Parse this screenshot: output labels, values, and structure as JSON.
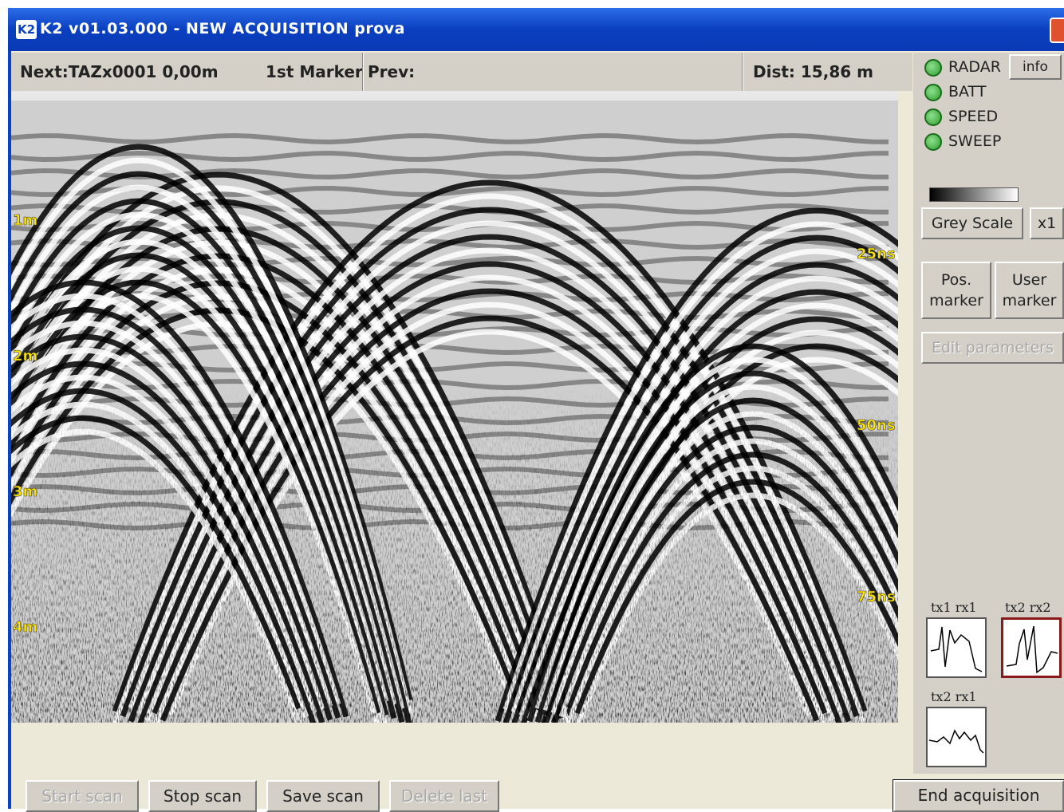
{
  "window": {
    "icon": "K2",
    "title": "K2 v01.03.000 - NEW ACQUISITION  prova"
  },
  "status": {
    "next": "Next:TAZx0001  0,00m",
    "marker": "1st Marker",
    "prev": "Prev:",
    "dist": "Dist:  15,86 m"
  },
  "radargram": {
    "depth_labels": [
      "1m",
      "2m",
      "3m",
      "4m"
    ],
    "time_labels": [
      "25ns",
      "50ns",
      "75ns"
    ]
  },
  "panel": {
    "indicators": [
      "RADAR",
      "BATT",
      "SPEED",
      "SWEEP"
    ],
    "info": "info",
    "color_scale": "Grey Scale",
    "zoom": "x1",
    "pos_marker": "Pos. marker",
    "user_marker": "User marker",
    "edit_parameters": "Edit parameters",
    "waveforms": [
      "tx1 rx1",
      "tx2 rx2",
      "tx2 rx1"
    ]
  },
  "toolbar": {
    "buttons": [
      "Start scan",
      "Stop scan",
      "Save scan",
      "Delete last"
    ],
    "end": "End acquisition"
  }
}
